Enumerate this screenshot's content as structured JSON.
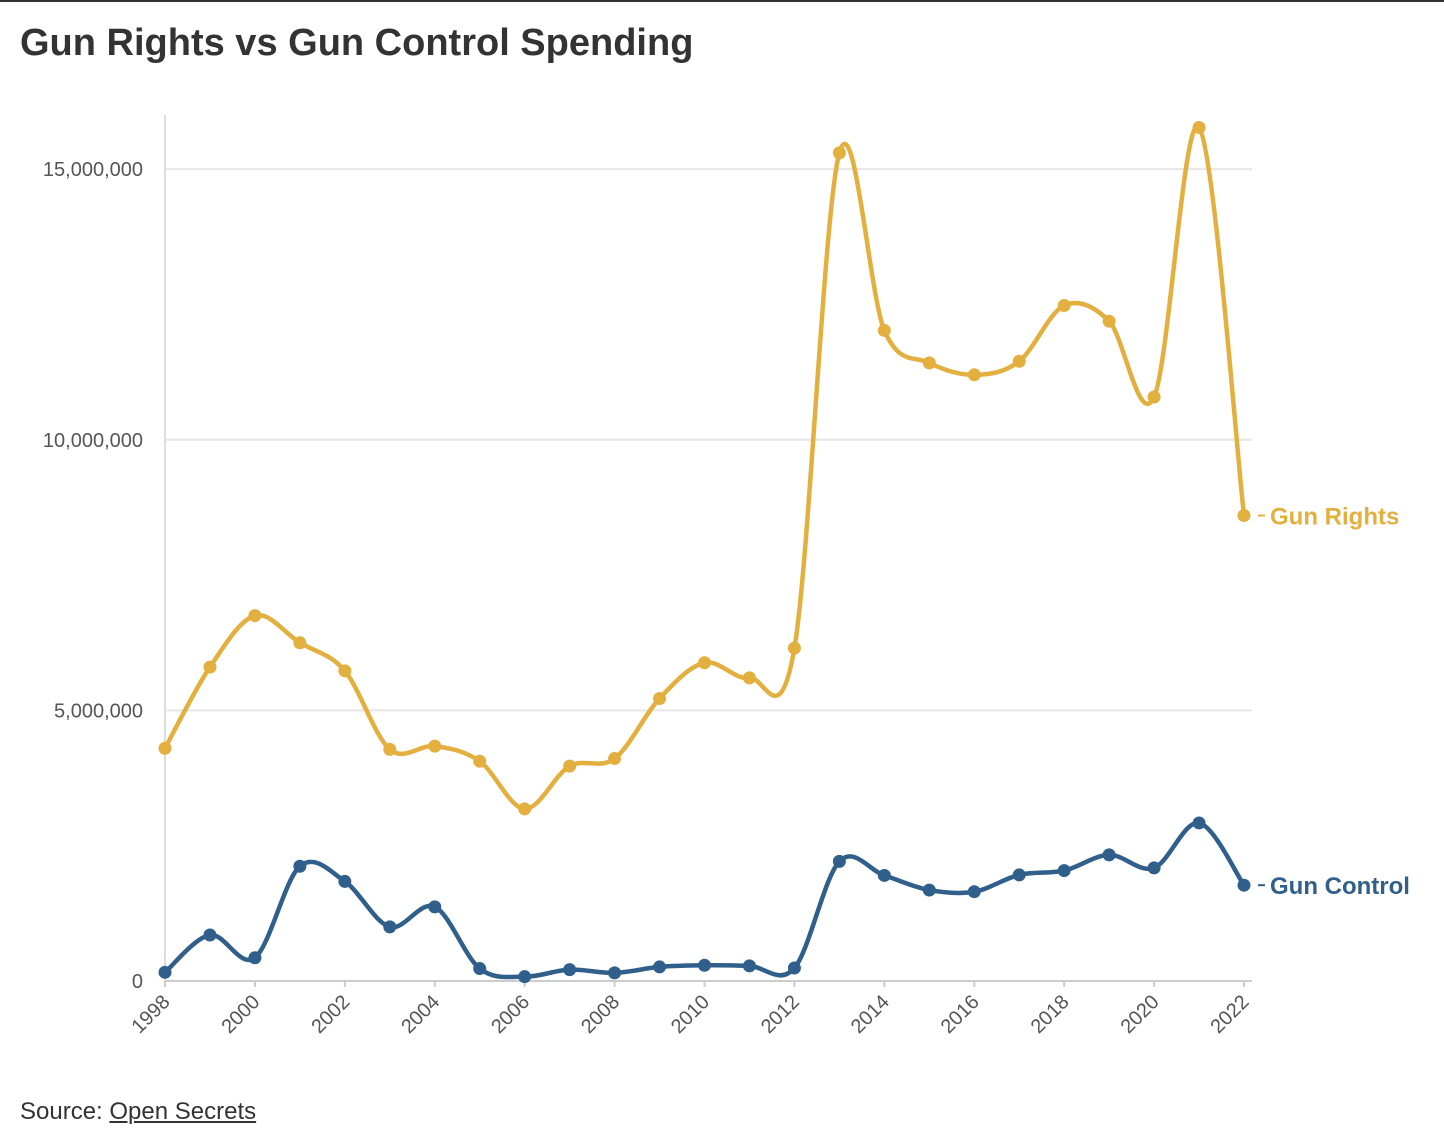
{
  "title": "Gun Rights vs Gun Control Spending",
  "source": {
    "prefix": "Source:",
    "link_text": "Open Secrets"
  },
  "chart_data": {
    "type": "line",
    "title": "Gun Rights vs Gun Control Spending",
    "xlabel": "",
    "ylabel": "",
    "x": [
      1998,
      1999,
      2000,
      2001,
      2002,
      2003,
      2004,
      2005,
      2006,
      2007,
      2008,
      2009,
      2010,
      2011,
      2012,
      2013,
      2014,
      2015,
      2016,
      2017,
      2018,
      2019,
      2020,
      2021,
      2022
    ],
    "xlim": [
      1998,
      2022
    ],
    "ylim": [
      0,
      16000000
    ],
    "x_ticks": [
      "1998",
      "2000",
      "2002",
      "2004",
      "2006",
      "2008",
      "2010",
      "2012",
      "2014",
      "2016",
      "2018",
      "2020",
      "2022"
    ],
    "y_ticks": [
      "0",
      "5,000,000",
      "10,000,000",
      "15,000,000"
    ],
    "y_tick_values": [
      0,
      5000000,
      10000000,
      15000000
    ],
    "grid": true,
    "legend": "direct labels at line ends",
    "series": [
      {
        "name": "Gun Rights",
        "color": "#e3b03f",
        "values": [
          4300000,
          5800000,
          6750000,
          6250000,
          5730000,
          4280000,
          4340000,
          4060000,
          3180000,
          3970000,
          4110000,
          5220000,
          5880000,
          5600000,
          6150000,
          15300000,
          12020000,
          11420000,
          11200000,
          11450000,
          12480000,
          12190000,
          10790000,
          15770000,
          8600000
        ]
      },
      {
        "name": "Gun Control",
        "color": "#2f5f8a",
        "values": [
          160000,
          850000,
          430000,
          2120000,
          1840000,
          1000000,
          1370000,
          230000,
          80000,
          210000,
          150000,
          260000,
          290000,
          280000,
          240000,
          2210000,
          1950000,
          1680000,
          1650000,
          1960000,
          2040000,
          2330000,
          2090000,
          2920000,
          1770000
        ]
      }
    ]
  }
}
